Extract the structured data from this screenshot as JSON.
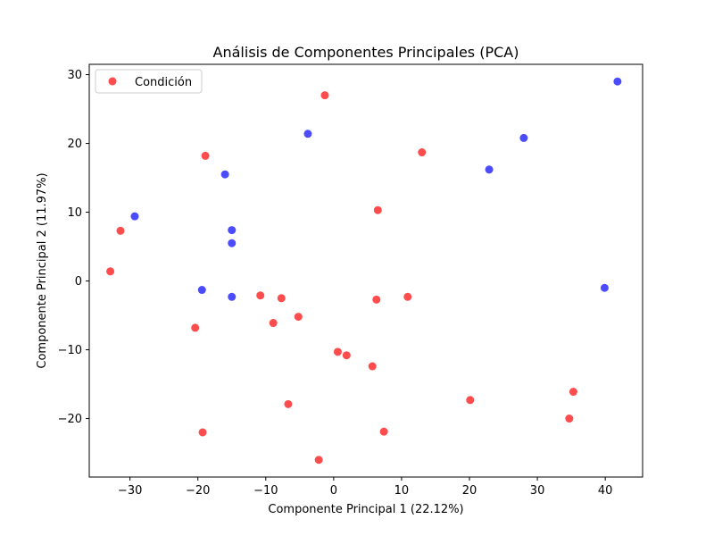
{
  "chart_data": {
    "type": "scatter",
    "title": "Análisis de Componentes Principales (PCA)",
    "xlabel": "Componente Principal 1 (22.12%)",
    "ylabel": "Componente Principal 2 (11.97%)",
    "xlim": [
      -36,
      45.5
    ],
    "ylim": [
      -28.5,
      31.5
    ],
    "xticks": [
      -30,
      -20,
      -10,
      0,
      10,
      20,
      30,
      40
    ],
    "yticks": [
      -20,
      -10,
      0,
      10,
      20,
      30
    ],
    "grid": false,
    "legend": {
      "position": "top-left",
      "entries": [
        {
          "label": "Condición",
          "color": "#ff0000"
        }
      ]
    },
    "series": [
      {
        "color": "#ff0000",
        "points": [
          [
            -1.3,
            27.0
          ],
          [
            13.0,
            18.7
          ],
          [
            -18.9,
            18.2
          ],
          [
            6.5,
            10.3
          ],
          [
            -31.4,
            7.3
          ],
          [
            -32.9,
            1.4
          ],
          [
            -10.8,
            -2.1
          ],
          [
            -7.7,
            -2.5
          ],
          [
            6.3,
            -2.7
          ],
          [
            10.9,
            -2.3
          ],
          [
            -5.2,
            -5.2
          ],
          [
            -8.9,
            -6.1
          ],
          [
            -20.4,
            -6.8
          ],
          [
            0.6,
            -10.3
          ],
          [
            1.9,
            -10.8
          ],
          [
            5.7,
            -12.4
          ],
          [
            20.1,
            -17.3
          ],
          [
            35.3,
            -16.1
          ],
          [
            34.7,
            -20.0
          ],
          [
            -6.7,
            -17.9
          ],
          [
            7.4,
            -21.9
          ],
          [
            -19.3,
            -22.0
          ],
          [
            -2.2,
            -26.0
          ]
        ]
      },
      {
        "color": "#0000ff",
        "points": [
          [
            41.8,
            29.0
          ],
          [
            28.0,
            20.8
          ],
          [
            22.9,
            16.2
          ],
          [
            -3.8,
            21.4
          ],
          [
            -16.0,
            15.5
          ],
          [
            -29.3,
            9.4
          ],
          [
            -15.0,
            7.4
          ],
          [
            -15.0,
            5.5
          ],
          [
            -19.4,
            -1.3
          ],
          [
            -15.0,
            -2.3
          ],
          [
            39.9,
            -1.0
          ]
        ]
      }
    ]
  }
}
